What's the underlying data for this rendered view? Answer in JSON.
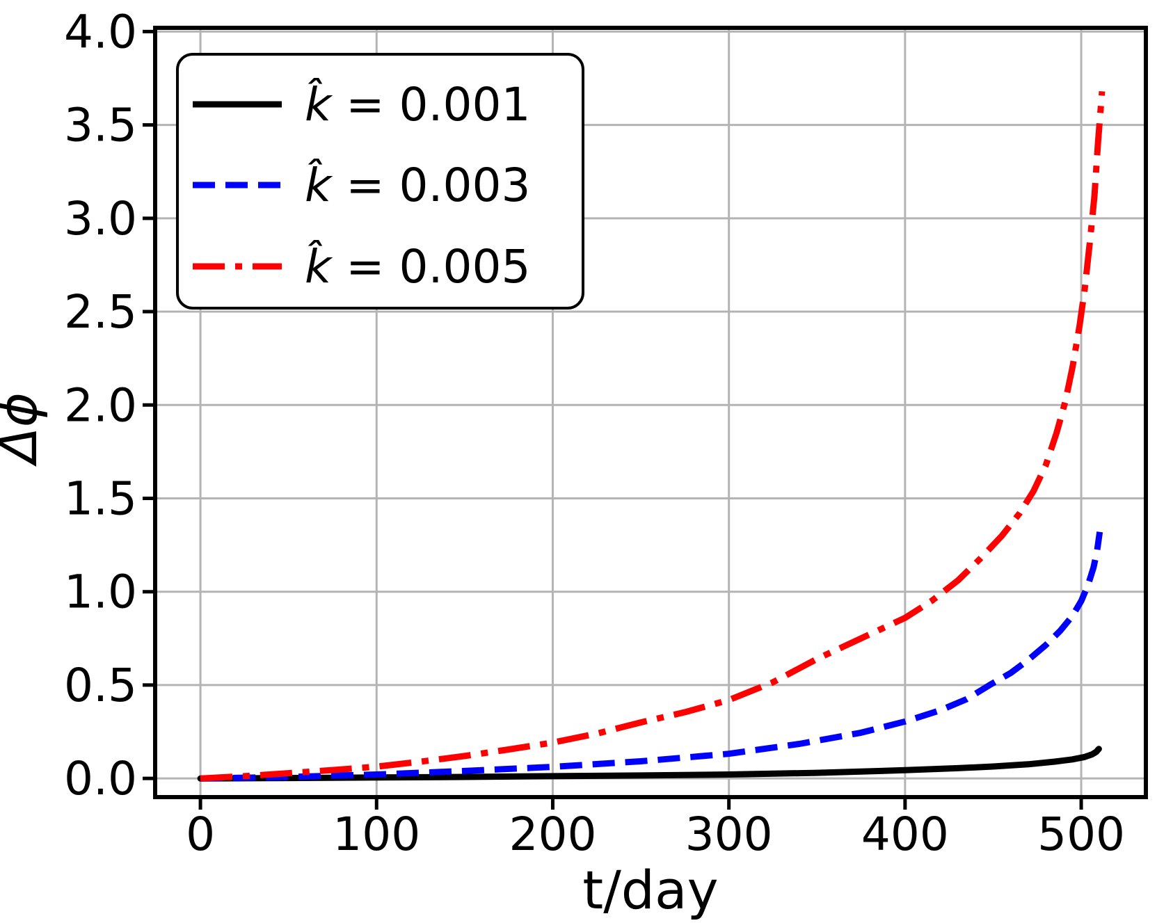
{
  "figure": {
    "background": "#ffffff",
    "grid_color": "#b4b4b4",
    "spine_color": "#000000",
    "legend_border_color": "#000000",
    "legend_background": "#ffffff"
  },
  "axes": {
    "xlabel": "t/day",
    "ylabel": "Δϕ",
    "x_ticks": [
      0,
      100,
      200,
      300,
      400,
      500
    ],
    "x_tick_labels": [
      "0",
      "100",
      "200",
      "300",
      "400",
      "500"
    ],
    "y_ticks": [
      0.0,
      0.5,
      1.0,
      1.5,
      2.0,
      2.5,
      3.0,
      3.5,
      4.0
    ],
    "y_tick_labels": [
      "0.0",
      "0.5",
      "1.0",
      "1.5",
      "2.0",
      "2.5",
      "3.0",
      "3.5",
      "4.0"
    ],
    "xlim": [
      -25.7,
      536.7
    ],
    "ylim": [
      -0.1,
      4.02
    ],
    "grid": true
  },
  "legend": {
    "position": "upper-left",
    "entries": [
      {
        "label": "k̂ = 0.001",
        "color": "#000000",
        "linestyle": "solid"
      },
      {
        "label": "k̂ = 0.003",
        "color": "#0000ff",
        "linestyle": "dashed"
      },
      {
        "label": "k̂ = 0.005",
        "color": "#ff0000",
        "linestyle": "dashdot"
      }
    ]
  },
  "chart_data": {
    "type": "line",
    "title": "",
    "xlabel": "t/day",
    "ylabel": "Δϕ",
    "xlim": [
      -25.7,
      536.7
    ],
    "ylim": [
      -0.1,
      4.02
    ],
    "grid": true,
    "legend_position": "upper-left",
    "series": [
      {
        "name": "k̂ = 0.001",
        "color": "#000000",
        "linestyle": "solid",
        "points": [
          [
            0,
            0
          ],
          [
            50,
            0.002
          ],
          [
            100,
            0.005
          ],
          [
            150,
            0.008
          ],
          [
            200,
            0.012
          ],
          [
            250,
            0.016
          ],
          [
            300,
            0.021
          ],
          [
            350,
            0.03
          ],
          [
            400,
            0.044
          ],
          [
            430,
            0.055
          ],
          [
            450,
            0.064
          ],
          [
            470,
            0.076
          ],
          [
            485,
            0.09
          ],
          [
            495,
            0.102
          ],
          [
            502,
            0.115
          ],
          [
            506,
            0.128
          ],
          [
            508.5,
            0.142
          ],
          [
            510,
            0.158
          ]
        ]
      },
      {
        "name": "k̂ = 0.003",
        "color": "#0000ff",
        "linestyle": "dashed",
        "points": [
          [
            0,
            0
          ],
          [
            50,
            0.008
          ],
          [
            100,
            0.021
          ],
          [
            150,
            0.04
          ],
          [
            200,
            0.062
          ],
          [
            250,
            0.092
          ],
          [
            300,
            0.132
          ],
          [
            340,
            0.185
          ],
          [
            375,
            0.245
          ],
          [
            400,
            0.305
          ],
          [
            420,
            0.365
          ],
          [
            435,
            0.425
          ],
          [
            448,
            0.5
          ],
          [
            460,
            0.565
          ],
          [
            470,
            0.635
          ],
          [
            480,
            0.715
          ],
          [
            488,
            0.79
          ],
          [
            495,
            0.87
          ],
          [
            500,
            0.95
          ],
          [
            504,
            1.04
          ],
          [
            507,
            1.13
          ],
          [
            509,
            1.22
          ],
          [
            510.5,
            1.32
          ]
        ]
      },
      {
        "name": "k̂ = 0.005",
        "color": "#ff0000",
        "linestyle": "dashdot",
        "points": [
          [
            0,
            0
          ],
          [
            25,
            0.012
          ],
          [
            50,
            0.028
          ],
          [
            75,
            0.045
          ],
          [
            100,
            0.063
          ],
          [
            125,
            0.09
          ],
          [
            150,
            0.12
          ],
          [
            175,
            0.155
          ],
          [
            200,
            0.192
          ],
          [
            225,
            0.24
          ],
          [
            250,
            0.3
          ],
          [
            275,
            0.355
          ],
          [
            300,
            0.42
          ],
          [
            325,
            0.515
          ],
          [
            350,
            0.64
          ],
          [
            375,
            0.75
          ],
          [
            400,
            0.86
          ],
          [
            415,
            0.95
          ],
          [
            430,
            1.06
          ],
          [
            443,
            1.18
          ],
          [
            455,
            1.3
          ],
          [
            465,
            1.42
          ],
          [
            473,
            1.54
          ],
          [
            480,
            1.68
          ],
          [
            486,
            1.85
          ],
          [
            491,
            2.02
          ],
          [
            495,
            2.2
          ],
          [
            499,
            2.42
          ],
          [
            502,
            2.62
          ],
          [
            505,
            2.88
          ],
          [
            507.5,
            3.12
          ],
          [
            509.5,
            3.4
          ],
          [
            511,
            3.58
          ],
          [
            511.8,
            3.68
          ]
        ]
      }
    ]
  }
}
